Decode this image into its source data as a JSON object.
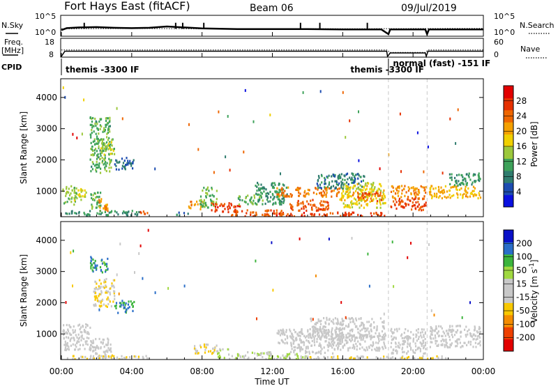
{
  "chart_data": {
    "type": "heatmap",
    "header": {
      "title": "Fort Hays East (fitACF)",
      "beam": "Beam 06",
      "date": "09/Jul/2019"
    },
    "time_axis": {
      "label": "Time UT",
      "tick_labels": [
        "00:00",
        "04:00",
        "08:00",
        "12:00",
        "16:00",
        "20:00",
        "00:00"
      ],
      "range_hours": [
        0,
        24
      ]
    },
    "sky_noise": {
      "left_label": "N.Sky",
      "right_label": "N.Search",
      "left_ticks": [
        "10^5",
        "10^0"
      ],
      "right_ticks": [
        "10^5",
        "10^0"
      ],
      "sky_series": [
        {
          "t": 0.0,
          "v": 1.2
        },
        {
          "t": 0.3,
          "v": 1.8
        },
        {
          "t": 1.0,
          "v": 2.0
        },
        {
          "t": 2.0,
          "v": 2.1
        },
        {
          "t": 3.0,
          "v": 1.9
        },
        {
          "t": 4.0,
          "v": 1.8
        },
        {
          "t": 5.0,
          "v": 1.9
        },
        {
          "t": 6.0,
          "v": 2.3
        },
        {
          "t": 7.0,
          "v": 2.0
        },
        {
          "t": 8.0,
          "v": 1.7
        },
        {
          "t": 10.0,
          "v": 1.5
        },
        {
          "t": 12.0,
          "v": 1.5
        },
        {
          "t": 14.0,
          "v": 1.5
        },
        {
          "t": 16.0,
          "v": 1.4
        },
        {
          "t": 18.2,
          "v": 1.4
        },
        {
          "t": 18.6,
          "v": 0.0
        },
        {
          "t": 18.7,
          "v": 1.4
        },
        {
          "t": 20.7,
          "v": 1.4
        },
        {
          "t": 20.8,
          "v": 0.0
        },
        {
          "t": 20.9,
          "v": 1.4
        },
        {
          "t": 24.0,
          "v": 1.4
        }
      ],
      "search_series": [
        {
          "t": 0.0,
          "v": 1.6
        },
        {
          "t": 4.0,
          "v": 1.7
        },
        {
          "t": 8.0,
          "v": 1.6
        },
        {
          "t": 12.0,
          "v": 1.6
        },
        {
          "t": 16.0,
          "v": 1.6
        },
        {
          "t": 24.0,
          "v": 1.7
        }
      ],
      "spikes_hours": [
        1.3,
        6.5,
        6.9,
        8.1,
        13.6,
        14.7,
        17.4
      ]
    },
    "frequency": {
      "left_label": "Freq.",
      "unit_label": "[MHz]",
      "right_label": "Nave",
      "left_ticks": [
        "18",
        "8"
      ],
      "right_ticks": [
        "60",
        "0"
      ],
      "freq_series": [
        {
          "t": 0.0,
          "v": 8
        },
        {
          "t": 0.2,
          "v": 11
        },
        {
          "t": 18.5,
          "v": 11
        },
        {
          "t": 18.55,
          "v": 8
        },
        {
          "t": 18.7,
          "v": 10
        },
        {
          "t": 20.7,
          "v": 10
        },
        {
          "t": 20.75,
          "v": 8
        },
        {
          "t": 20.85,
          "v": 11
        },
        {
          "t": 24.0,
          "v": 11
        }
      ],
      "nave_series": [
        {
          "t": 0.0,
          "v": 22
        },
        {
          "t": 18.5,
          "v": 22
        },
        {
          "t": 18.7,
          "v": 14
        },
        {
          "t": 20.7,
          "v": 14
        },
        {
          "t": 20.85,
          "v": 22
        },
        {
          "t": 24.0,
          "v": 22
        }
      ]
    },
    "cpid": {
      "label": "CPID",
      "segments": [
        {
          "text": "themis -3300 IF",
          "start": 0.0,
          "end": 18.5
        },
        {
          "text": "themis -3300 IF",
          "start": 18.5,
          "end": 18.6
        },
        {
          "text": "normal (fast) -151 IF",
          "start": 18.7,
          "end": 24.0
        }
      ]
    },
    "range_axis": {
      "label": "Slant Range [km]",
      "ticks": [
        1000,
        2000,
        3000,
        4000
      ],
      "range_km": [
        180,
        4600
      ]
    },
    "mode_change_hours": [
      18.6,
      20.8
    ],
    "power": {
      "colorbar_label": "Power [dB]",
      "tick_labels": [
        4,
        8,
        12,
        16,
        20,
        24,
        28
      ],
      "range": [
        0,
        32
      ],
      "colors": [
        "#0a10e0",
        "#1c4cb0",
        "#2f7c6e",
        "#3ea25a",
        "#9cc83c",
        "#f0d000",
        "#f4a000",
        "#ee6600",
        "#e63000",
        "#e20000"
      ],
      "patches": [
        {
          "t0": 0.05,
          "t1": 0.85,
          "r0": 600,
          "r1": 1250,
          "v": 14
        },
        {
          "t0": 0.85,
          "t1": 1.5,
          "r0": 750,
          "r1": 1100,
          "v": 16
        },
        {
          "t0": 1.5,
          "t1": 2.2,
          "r0": 450,
          "r1": 1000,
          "v": 12
        },
        {
          "t0": 2.1,
          "t1": 2.6,
          "r0": 300,
          "r1": 800,
          "v": 21
        },
        {
          "t0": 1.6,
          "t1": 2.8,
          "r0": 1600,
          "r1": 3400,
          "v": 12
        },
        {
          "t0": 2.2,
          "t1": 3.0,
          "r0": 2200,
          "r1": 2700,
          "v": 15
        },
        {
          "t0": 3.0,
          "t1": 4.1,
          "r0": 1700,
          "r1": 2100,
          "v": 6
        },
        {
          "t0": 4.3,
          "t1": 5.0,
          "r0": 300,
          "r1": 400,
          "v": 25
        },
        {
          "t0": 0.2,
          "t1": 4.5,
          "r0": 250,
          "r1": 400,
          "v": 9
        },
        {
          "t0": 6.5,
          "t1": 7.3,
          "r0": 250,
          "r1": 350,
          "v": 8
        },
        {
          "t0": 7.2,
          "t1": 8.0,
          "r0": 450,
          "r1": 700,
          "v": 22
        },
        {
          "t0": 7.8,
          "t1": 8.8,
          "r0": 500,
          "r1": 1150,
          "v": 12
        },
        {
          "t0": 8.5,
          "t1": 10.2,
          "r0": 350,
          "r1": 650,
          "v": 27
        },
        {
          "t0": 9.5,
          "t1": 12.6,
          "r0": 220,
          "r1": 420,
          "v": 25
        },
        {
          "t0": 10.0,
          "t1": 11.5,
          "r0": 600,
          "r1": 900,
          "v": 12
        },
        {
          "t0": 11.0,
          "t1": 12.8,
          "r0": 600,
          "r1": 1300,
          "v": 10
        },
        {
          "t0": 12.2,
          "t1": 15.8,
          "r0": 850,
          "r1": 1150,
          "v": 23
        },
        {
          "t0": 12.8,
          "t1": 15.2,
          "r0": 400,
          "r1": 750,
          "v": 25
        },
        {
          "t0": 12.0,
          "t1": 18.4,
          "r0": 220,
          "r1": 350,
          "v": 27
        },
        {
          "t0": 14.5,
          "t1": 17.2,
          "r0": 1100,
          "r1": 1600,
          "v": 8
        },
        {
          "t0": 15.8,
          "t1": 18.4,
          "r0": 500,
          "r1": 1300,
          "v": 17
        },
        {
          "t0": 16.5,
          "t1": 18.2,
          "r0": 700,
          "r1": 1000,
          "v": 24
        },
        {
          "t0": 18.7,
          "t1": 20.7,
          "r0": 800,
          "r1": 1200,
          "v": 22
        },
        {
          "t0": 18.7,
          "t1": 20.7,
          "r0": 400,
          "r1": 800,
          "v": 26
        },
        {
          "t0": 20.9,
          "t1": 23.8,
          "r0": 800,
          "r1": 1200,
          "v": 20
        },
        {
          "t0": 22.0,
          "t1": 23.8,
          "r0": 1200,
          "r1": 1600,
          "v": 10
        }
      ]
    },
    "velocity": {
      "colorbar_label": "Velocity [m s^-1]",
      "tick_labels": [
        -200,
        -100,
        -50,
        -15,
        15,
        50,
        100,
        200
      ],
      "range": [
        -250,
        250
      ],
      "colors": [
        "#e20000",
        "#ee4000",
        "#f48c00",
        "#f8c800",
        "#c8c8c8",
        "#c8c8c8",
        "#a0d840",
        "#3cb43c",
        "#2a6ec8",
        "#0a10c8"
      ],
      "patches": [
        {
          "t0": 0.05,
          "t1": 1.6,
          "r0": 500,
          "r1": 1350,
          "v": 0
        },
        {
          "t0": 1.6,
          "t1": 2.8,
          "r0": 250,
          "r1": 900,
          "v": 0
        },
        {
          "t0": 1.6,
          "t1": 2.6,
          "r0": 3000,
          "r1": 3500,
          "v": 150
        },
        {
          "t0": 1.8,
          "t1": 3.0,
          "r0": 1900,
          "r1": 2800,
          "v": -40
        },
        {
          "t0": 3.0,
          "t1": 4.1,
          "r0": 1700,
          "r1": 2100,
          "v": 150
        },
        {
          "t0": 0.2,
          "t1": 5.0,
          "r0": 220,
          "r1": 350,
          "v": -40
        },
        {
          "t0": 7.5,
          "t1": 8.8,
          "r0": 400,
          "r1": 700,
          "v": -40
        },
        {
          "t0": 8.8,
          "t1": 9.5,
          "r0": 250,
          "r1": 550,
          "v": 45
        },
        {
          "t0": 9.5,
          "t1": 12.0,
          "r0": 220,
          "r1": 450,
          "v": 45
        },
        {
          "t0": 12.0,
          "t1": 14.0,
          "r0": 220,
          "r1": 400,
          "v": 45
        },
        {
          "t0": 12.2,
          "t1": 16.0,
          "r0": 700,
          "r1": 1200,
          "v": 0
        },
        {
          "t0": 13.0,
          "t1": 15.5,
          "r0": 400,
          "r1": 700,
          "v": 0
        },
        {
          "t0": 14.0,
          "t1": 18.4,
          "r0": 900,
          "r1": 1550,
          "v": 0
        },
        {
          "t0": 15.0,
          "t1": 18.4,
          "r0": 500,
          "r1": 1000,
          "v": 0
        },
        {
          "t0": 18.7,
          "t1": 20.7,
          "r0": 400,
          "r1": 1200,
          "v": 0
        },
        {
          "t0": 20.9,
          "t1": 23.8,
          "r0": 600,
          "r1": 1300,
          "v": 0
        },
        {
          "t0": 14.0,
          "t1": 22.0,
          "r0": 220,
          "r1": 320,
          "v": -40
        }
      ]
    }
  }
}
